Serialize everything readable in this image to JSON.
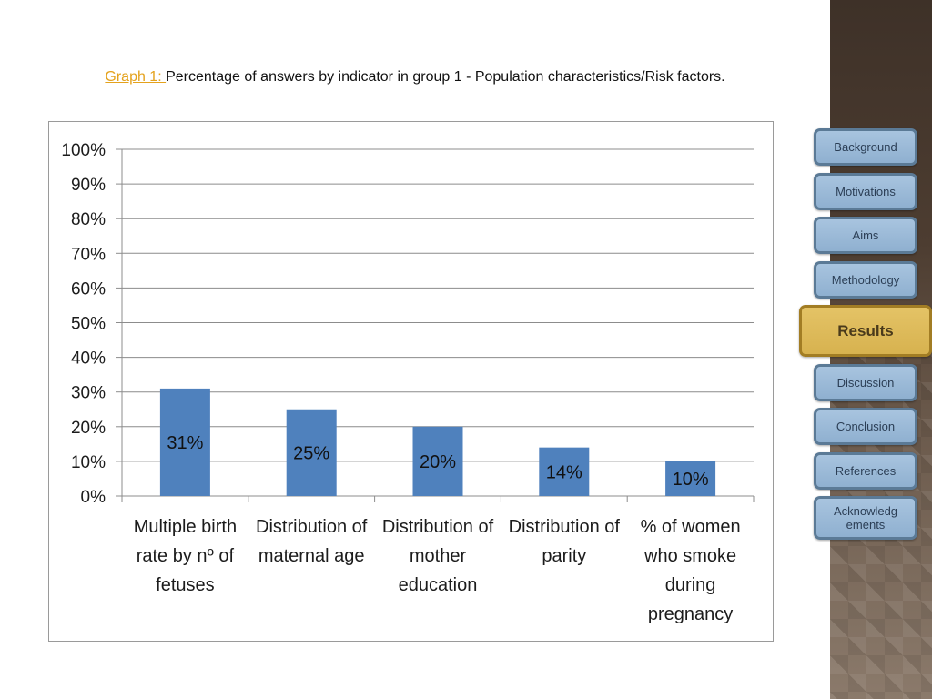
{
  "title": {
    "prefix": "Graph 1: ",
    "text": "Percentage of answers by indicator in group 1 - Population characteristics/Risk factors."
  },
  "chart_data": {
    "type": "bar",
    "categories": [
      [
        "Multiple birth",
        "rate by nº of",
        "fetuses"
      ],
      [
        "Distribution of",
        "maternal age"
      ],
      [
        "Distribution of",
        "mother",
        "education"
      ],
      [
        "Distribution of",
        "parity"
      ],
      [
        "% of women",
        "who smoke",
        "during",
        "pregnancy"
      ]
    ],
    "values": [
      31,
      25,
      20,
      14,
      10
    ],
    "data_labels": [
      "31%",
      "25%",
      "20%",
      "14%",
      "10%"
    ],
    "ylim": [
      0,
      100
    ],
    "yticks": [
      "0%",
      "10%",
      "20%",
      "30%",
      "40%",
      "50%",
      "60%",
      "70%",
      "80%",
      "90%",
      "100%"
    ],
    "grid": true,
    "bar_color": "#4f81bd",
    "legend": "none"
  },
  "nav": {
    "items": [
      {
        "label": "Background",
        "active": false
      },
      {
        "label": "Motivations",
        "active": false
      },
      {
        "label": "Aims",
        "active": false
      },
      {
        "label": "Methodology",
        "active": false
      },
      {
        "label": "Results",
        "active": true
      },
      {
        "label": "Discussion",
        "active": false
      },
      {
        "label": "Conclusion",
        "active": false
      },
      {
        "label": "References",
        "active": false
      },
      {
        "label": "Acknowledg ements",
        "active": false
      }
    ]
  }
}
